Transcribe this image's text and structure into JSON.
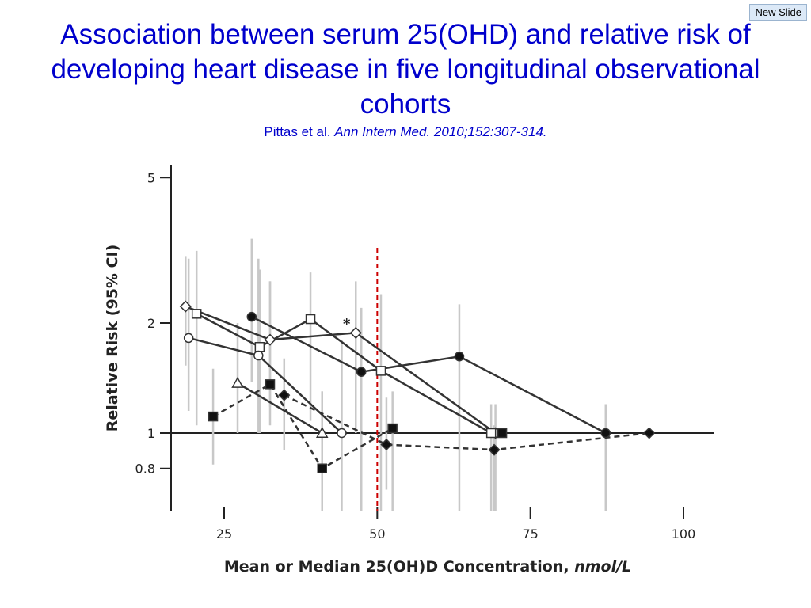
{
  "slide": {
    "badge": "New Slide",
    "title": "Association between serum 25(OHD) and relative risk of developing heart disease in five longitudinal observational cohorts",
    "citation_authors": "Pittas et al.",
    "citation_journal": "Ann Intern Med. 2010;152:307-314."
  },
  "colors": {
    "title": "#0000cc",
    "series": "#333333",
    "ci_bars": "#c8c8c8",
    "reference_line": "#cc0000"
  },
  "chart_data": {
    "type": "line",
    "xlabel": "Mean or Median 25(OH)D Concentration,",
    "xlabel_unit": "nmol/L",
    "ylabel": "Relative Risk (95% CI)",
    "xlim": [
      16,
      110
    ],
    "ylim": [
      0.6,
      5.5
    ],
    "y_scale": "log",
    "x_ticks": [
      25,
      50,
      75,
      100
    ],
    "y_ticks": [
      {
        "value": 5,
        "label": "5"
      },
      {
        "value": 2,
        "label": "2"
      },
      {
        "value": 1,
        "label": "1"
      },
      {
        "value": 0.8,
        "label": "0.8"
      }
    ],
    "reference_x": 50,
    "asterisk": {
      "x": 45,
      "y": 2.01,
      "label": "*"
    },
    "series": [
      {
        "name": "open-diamond",
        "marker": "diamond-open",
        "dash": "solid",
        "points": [
          {
            "x": 18.7,
            "y": 2.22,
            "lo": 1.53,
            "hi": 3.05
          },
          {
            "x": 32.5,
            "y": 1.8,
            "lo": 1.18,
            "hi": 2.6
          },
          {
            "x": 46.5,
            "y": 1.88,
            "lo": 1.0,
            "hi": 2.6
          },
          {
            "x": 69.3,
            "y": 1.0,
            "lo": 0.6,
            "hi": 1.2
          }
        ]
      },
      {
        "name": "open-square",
        "marker": "square-open",
        "dash": "solid",
        "points": [
          {
            "x": 20.5,
            "y": 2.12,
            "lo": 1.05,
            "hi": 3.15
          },
          {
            "x": 30.8,
            "y": 1.72,
            "lo": 1.0,
            "hi": 2.8
          },
          {
            "x": 39.1,
            "y": 2.05,
            "lo": 1.08,
            "hi": 2.75
          },
          {
            "x": 50.6,
            "y": 1.48,
            "lo": 0.6,
            "hi": 2.4
          },
          {
            "x": 68.6,
            "y": 1.0,
            "lo": 0.6,
            "hi": 1.2
          }
        ]
      },
      {
        "name": "filled-circle",
        "marker": "circle-filled",
        "dash": "solid",
        "points": [
          {
            "x": 29.5,
            "y": 2.08,
            "lo": 1.38,
            "hi": 3.4
          },
          {
            "x": 47.4,
            "y": 1.47,
            "lo": 0.6,
            "hi": 2.2
          },
          {
            "x": 63.4,
            "y": 1.62,
            "lo": 0.6,
            "hi": 2.25
          },
          {
            "x": 87.3,
            "y": 1.0,
            "lo": 0.6,
            "hi": 1.2
          }
        ]
      },
      {
        "name": "open-circle",
        "marker": "circle-open",
        "dash": "solid",
        "points": [
          {
            "x": 19.2,
            "y": 1.82,
            "lo": 1.15,
            "hi": 3.0
          },
          {
            "x": 30.6,
            "y": 1.63,
            "lo": 1.0,
            "hi": 3.0
          },
          {
            "x": 44.2,
            "y": 1.0,
            "lo": 0.6,
            "hi": 1.8
          }
        ]
      },
      {
        "name": "open-triangle",
        "marker": "triangle-open",
        "dash": "solid",
        "points": [
          {
            "x": 27.2,
            "y": 1.37,
            "lo": 1.0,
            "hi": 2.0
          },
          {
            "x": 41.0,
            "y": 1.0,
            "lo": 0.6,
            "hi": 1.3
          }
        ]
      },
      {
        "name": "filled-square-dashed",
        "marker": "square-filled",
        "dash": "dashed",
        "points": [
          {
            "x": 23.2,
            "y": 1.11,
            "lo": 0.82,
            "hi": 1.5
          },
          {
            "x": 32.5,
            "y": 1.36,
            "lo": 1.05,
            "hi": 2.6
          },
          {
            "x": 41.0,
            "y": 0.8,
            "lo": 0.6,
            "hi": 1.3
          },
          {
            "x": 52.5,
            "y": 1.03,
            "lo": 0.6,
            "hi": 1.3
          }
        ]
      },
      {
        "name": "filled-diamond-dashed",
        "marker": "diamond-filled",
        "dash": "dashed",
        "points": [
          {
            "x": 34.8,
            "y": 1.27,
            "lo": 0.9,
            "hi": 1.6
          },
          {
            "x": 51.5,
            "y": 0.93,
            "lo": 0.7,
            "hi": 1.25
          },
          {
            "x": 69.1,
            "y": 0.9,
            "lo": 0.6,
            "hi": 1.05
          },
          {
            "x": 94.4,
            "y": 1.0,
            "lo": 1.0,
            "hi": 1.0
          }
        ]
      }
    ],
    "extra_points": [
      {
        "name": "filled-square-end",
        "marker": "square-filled",
        "x": 70.4,
        "y": 1.0
      }
    ]
  }
}
